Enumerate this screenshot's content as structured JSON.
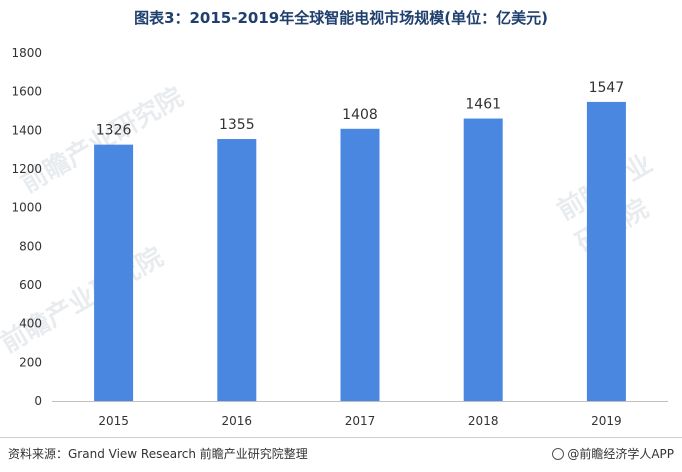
{
  "chart_data": {
    "type": "bar",
    "title": "图表3：2015-2019年全球智能电视市场规模(单位：亿美元)",
    "categories": [
      "2015",
      "2016",
      "2017",
      "2018",
      "2019"
    ],
    "values": [
      1326,
      1355,
      1408,
      1461,
      1547
    ],
    "data_labels": [
      "1326",
      "1355",
      "1408",
      "1461",
      "1547"
    ],
    "yticks": [
      0,
      200,
      400,
      600,
      800,
      1000,
      1200,
      1400,
      1600,
      1800
    ],
    "ylim": [
      0,
      1800
    ],
    "xlabel": "",
    "ylabel": "",
    "grid": false,
    "bar_color": "#4a87e0"
  },
  "footer": {
    "source": "资料来源：Grand View Research 前瞻产业研究院整理",
    "brand": "@前瞻经济学人APP",
    "brand_icon": "qianzhan-logo-icon"
  },
  "watermark": {
    "text": "前瞻产业研究院"
  }
}
